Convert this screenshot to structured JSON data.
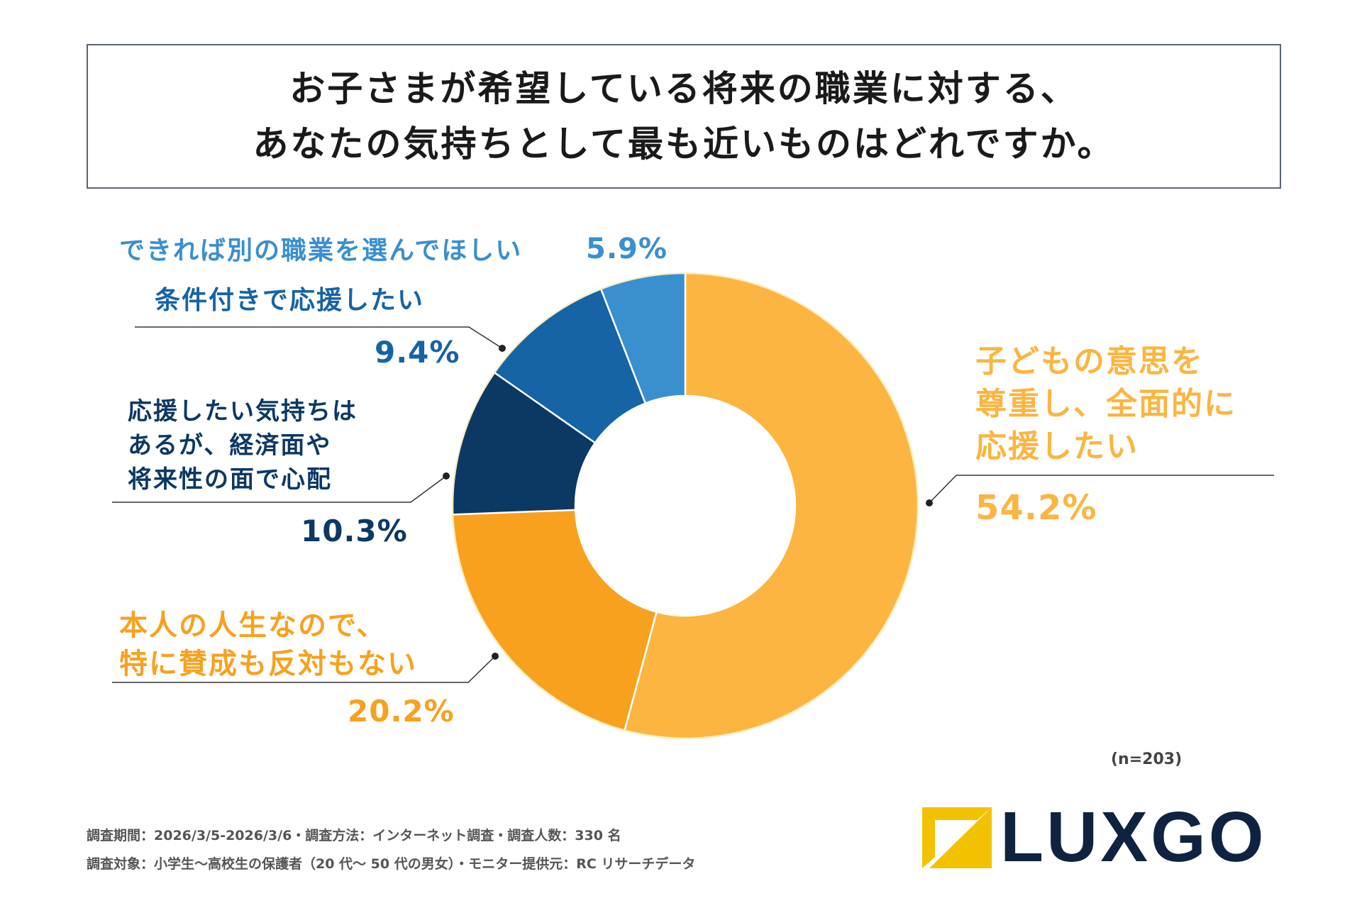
{
  "title": {
    "line1": "お子さまが希望している将来の職業に対する、",
    "line2": "あなたの気持ちとして最も近いものはどれですか。"
  },
  "chart_data": {
    "type": "pie",
    "donut": true,
    "title": "お子さまが希望している将来の職業に対する、あなたの気持ちとして最も近いものはどれですか。",
    "unit": "%",
    "sample_size": "(n=203)",
    "slices": [
      {
        "label_lines": [
          "子どもの意思を",
          "尊重し、全面的に",
          "応援したい"
        ],
        "value": 54.2,
        "value_label": "54.2%",
        "color": "#fbb540"
      },
      {
        "label_lines": [
          "本人の人生なので、",
          "特に賛成も反対もない"
        ],
        "value": 20.2,
        "value_label": "20.2%",
        "color": "#f8a11e"
      },
      {
        "label_lines": [
          "応援したい気持ちは",
          "あるが、経済面や",
          "将来性の面で心配"
        ],
        "value": 10.3,
        "value_label": "10.3%",
        "color": "#0c3864"
      },
      {
        "label_lines": [
          "条件付きで応援したい"
        ],
        "value": 9.4,
        "value_label": "9.4%",
        "color": "#1663a6"
      },
      {
        "label_lines": [
          "できれば別の職業を選んでほしい"
        ],
        "value": 5.9,
        "value_label": "5.9%",
        "color": "#3a8fcf"
      }
    ]
  },
  "footer": {
    "line1": "調査期間：2026/3/5-2026/3/6・調査方法：インターネット調査・調査人数：330 名",
    "line2": "調査対象：小学生～高校生の保護者（20 代～ 50 代の男女）・モニター提供元：RC リサーチデータ"
  },
  "logo": {
    "text": "LUXGO",
    "mark_color": "#f2c200",
    "text_color": "#0f2340"
  }
}
